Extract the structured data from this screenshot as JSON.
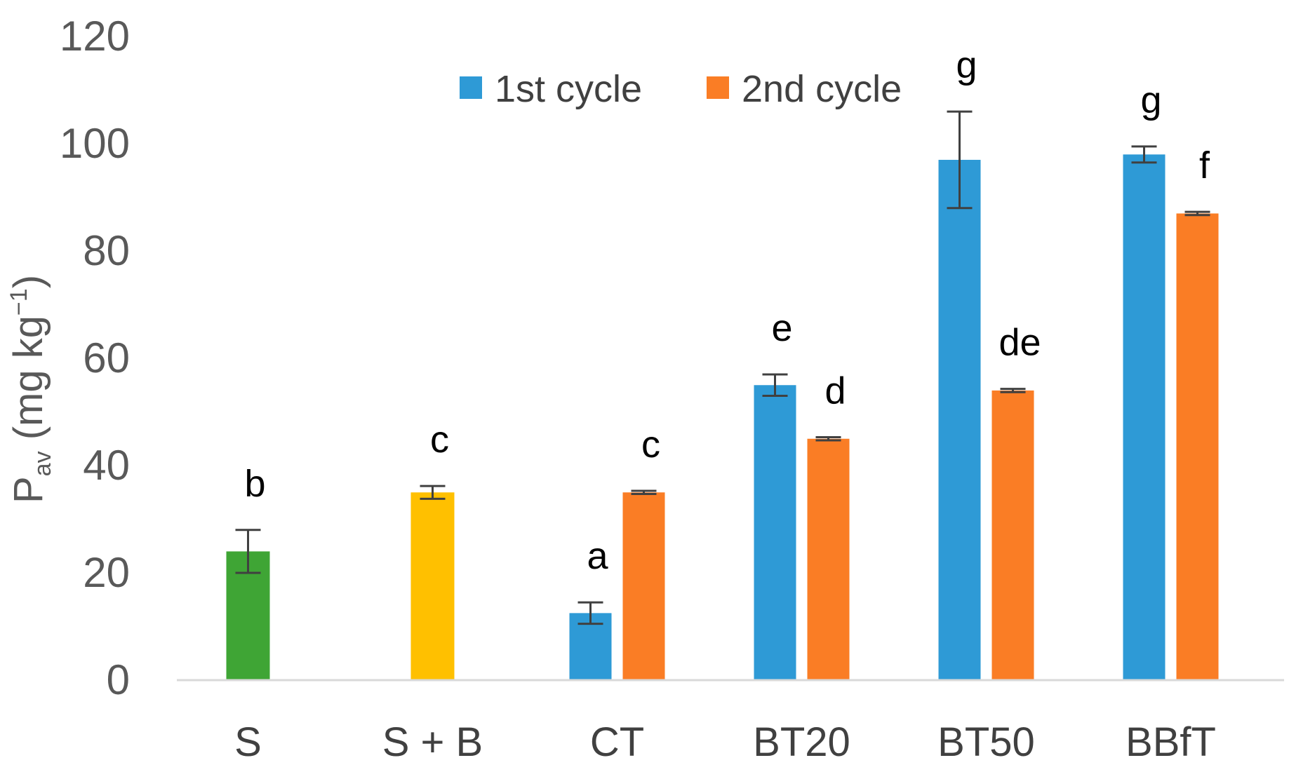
{
  "chart_data": {
    "type": "bar",
    "title": "",
    "xlabel": "",
    "ylabel": {
      "main": "P",
      "sub": "av",
      "rest": " (mg kg",
      "sup": "−1",
      "close": ")"
    },
    "ylim": [
      0,
      120
    ],
    "yticks": [
      0,
      20,
      40,
      60,
      80,
      100,
      120
    ],
    "categories": [
      "S",
      "S + B",
      "CT",
      "BT20",
      "BT50",
      "BBfT"
    ],
    "legend_position": "top-center",
    "colors": {
      "s": "#3fa535",
      "sb": "#ffc000",
      "cycle1": "#2e9ad6",
      "cycle2": "#fa7d25",
      "axis": "#d9d9d9",
      "error": "#404040"
    },
    "series": [
      {
        "name": "1st cycle",
        "color_key": "cycle1",
        "values": [
          null,
          null,
          12.5,
          55,
          97,
          98
        ],
        "errors": [
          null,
          null,
          2,
          2,
          9,
          1.5
        ],
        "labels": [
          null,
          null,
          "a",
          "e",
          "g",
          "g"
        ]
      },
      {
        "name": "2nd cycle",
        "color_key": "cycle2",
        "values": [
          null,
          null,
          35,
          45,
          54,
          87
        ],
        "errors": [
          null,
          null,
          0.3,
          0.3,
          0.3,
          0.3
        ],
        "labels": [
          null,
          null,
          "c",
          "d",
          "de",
          "f"
        ]
      }
    ],
    "single_bars": [
      {
        "category": "S",
        "value": 24,
        "error": 4,
        "label": "b",
        "color_key": "s"
      },
      {
        "category": "S + B",
        "value": 35,
        "error": 1.2,
        "label": "c",
        "color_key": "sb"
      }
    ]
  }
}
